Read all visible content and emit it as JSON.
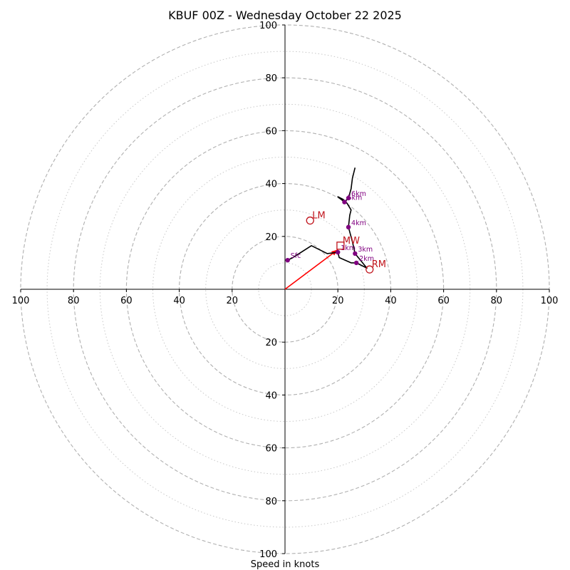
{
  "chart_data": {
    "type": "hodograph",
    "title": "KBUF 00Z - Wednesday October 22 2025",
    "xlabel": "Speed in knots",
    "units": "knots",
    "range": 100,
    "major_rings": [
      20,
      40,
      60,
      80,
      100
    ],
    "minor_rings": [
      10,
      30,
      50,
      70,
      90
    ],
    "ticks": {
      "left": [
        "100",
        "80",
        "60",
        "40",
        "20"
      ],
      "right": [
        "20",
        "40",
        "60",
        "80",
        "100"
      ],
      "top": [
        "20",
        "40",
        "60",
        "80",
        "100"
      ],
      "bottom": [
        "20",
        "40",
        "60",
        "80",
        "100"
      ]
    },
    "hodograph_trace": [
      [
        1,
        11
      ],
      [
        3,
        12
      ],
      [
        10,
        16.5
      ],
      [
        16,
        13.5
      ],
      [
        20,
        14
      ],
      [
        20.5,
        12
      ],
      [
        25,
        10
      ],
      [
        27,
        10
      ],
      [
        31,
        8
      ],
      [
        26.5,
        13.5
      ],
      [
        25.5,
        18
      ],
      [
        24,
        23.5
      ],
      [
        24.5,
        28
      ],
      [
        25,
        30
      ],
      [
        23.5,
        32.5
      ],
      [
        22,
        34
      ],
      [
        20,
        35
      ],
      [
        22.5,
        33
      ],
      [
        24,
        34.5
      ],
      [
        25,
        38
      ],
      [
        25.5,
        42
      ],
      [
        26.5,
        46
      ]
    ],
    "height_markers": [
      {
        "label": "Sfc",
        "u": 1,
        "v": 11
      },
      {
        "label": "1km",
        "u": 20,
        "v": 14
      },
      {
        "label": "2km",
        "u": 27,
        "v": 10
      },
      {
        "label": "3km",
        "u": 26.5,
        "v": 13.5
      },
      {
        "label": "4km",
        "u": 24,
        "v": 23.5
      },
      {
        "label": "5km",
        "u": 22.5,
        "v": 33
      },
      {
        "label": "6km",
        "u": 24,
        "v": 34.5
      }
    ],
    "storm_motions": [
      {
        "label": "RM",
        "u": 32,
        "v": 7.5,
        "marker": "circle"
      },
      {
        "label": "LM",
        "u": 9.5,
        "v": 26,
        "marker": "circle"
      },
      {
        "label": "MW",
        "u": 21,
        "v": 16.5,
        "marker": "square"
      }
    ],
    "storm_vector": {
      "from": [
        0,
        0
      ],
      "to": [
        20,
        15
      ]
    },
    "colors": {
      "trace": "#000000",
      "height_marker": "#800080",
      "storm_motion": "#c0141c",
      "storm_vector": "#ff0000",
      "major_ring": "#b0b0b0",
      "minor_ring": "#c8c8c8"
    }
  }
}
